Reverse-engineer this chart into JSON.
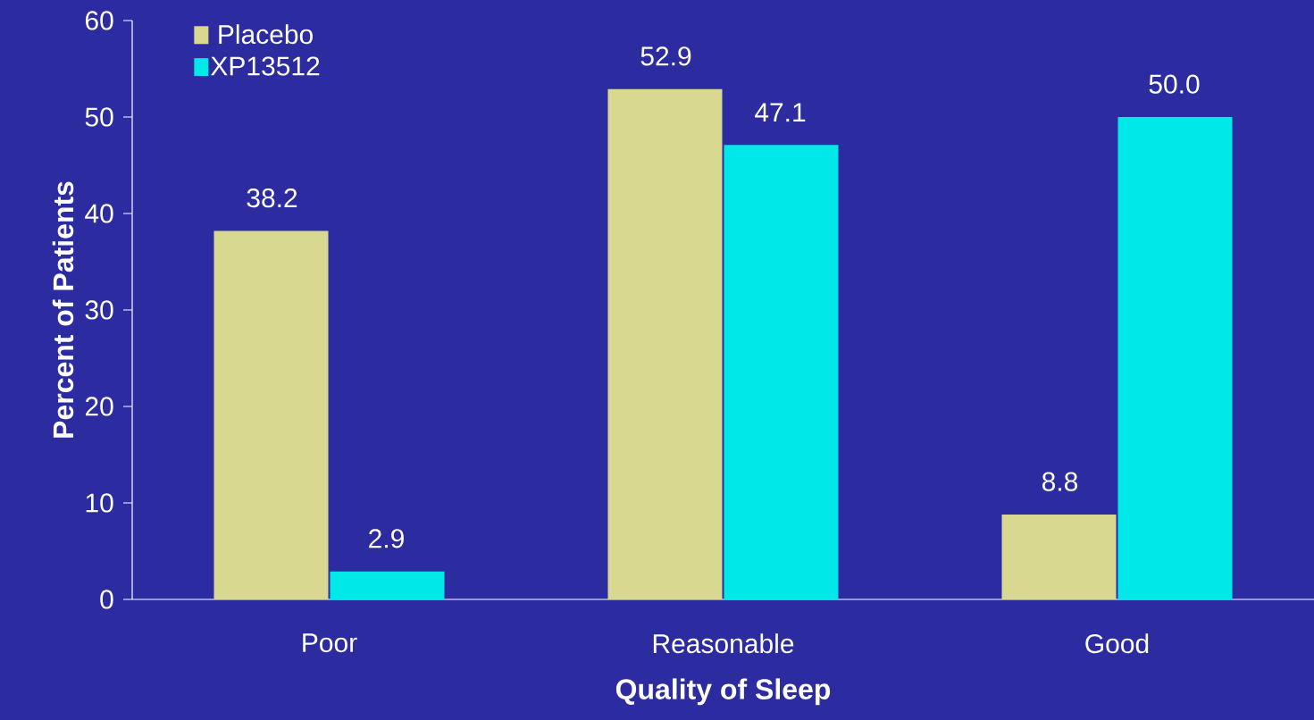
{
  "chart_data": {
    "type": "bar",
    "xlabel": "Quality of Sleep",
    "ylabel": "Percent of Patients",
    "categories": [
      "Poor",
      "Reasonable",
      "Good"
    ],
    "series": [
      {
        "name": "Placebo",
        "color": "#d8d890",
        "values": [
          38.2,
          52.9,
          8.8
        ],
        "value_labels": [
          "38.2",
          "52.9",
          "8.8"
        ]
      },
      {
        "name": "XP13512",
        "color": "#00e8e8",
        "values": [
          2.9,
          47.1,
          50.0
        ],
        "value_labels": [
          "2.9",
          "47.1",
          "50.0"
        ]
      }
    ],
    "ylim": [
      0,
      60
    ],
    "yticks": [
      0,
      10,
      20,
      30,
      40,
      50,
      60
    ],
    "grid": false,
    "legend": "top left"
  }
}
